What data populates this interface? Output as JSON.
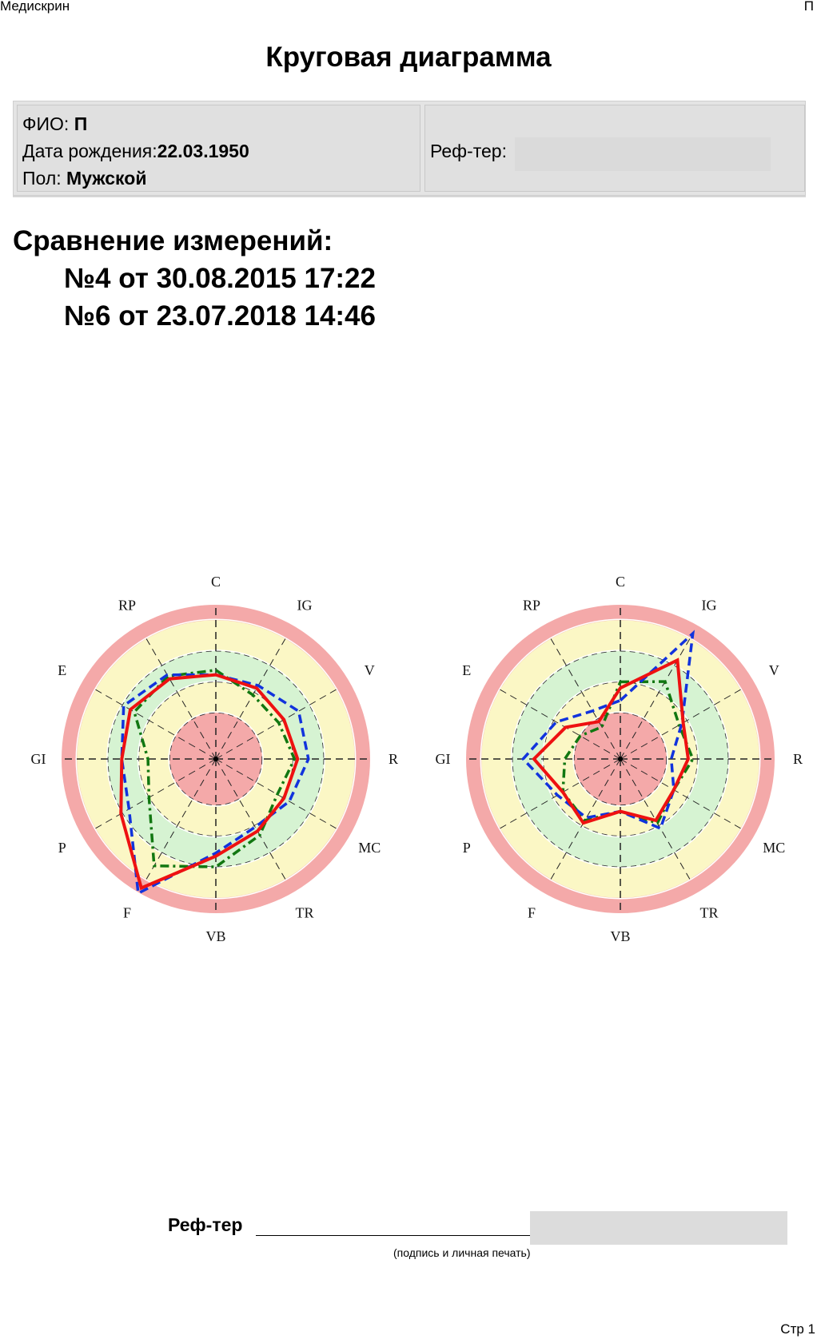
{
  "header": {
    "app": "Медискрин",
    "user_initial": "П"
  },
  "title": "Круговая диаграмма",
  "patient": {
    "fio_label": "ФИО:",
    "fio": "П",
    "dob_label": "Дата рождения:",
    "dob": "22.03.1950",
    "sex_label": "Пол:",
    "sex": "Мужской",
    "ref_label": "Реф-тер:"
  },
  "comparison": {
    "heading": "Сравнение измерений:",
    "line1": "№4 от 30.08.2015 17:22",
    "line2": "№6 от 23.07.2018 14:46"
  },
  "chart_data": [
    {
      "type": "radar",
      "axes": [
        "C",
        "IG",
        "V",
        "R",
        "MC",
        "TR",
        "VB",
        "F",
        "P",
        "GI",
        "E",
        "RP"
      ],
      "rlim": [
        0,
        5
      ],
      "zones": [
        {
          "from": 0,
          "to": 1.5,
          "color": "#f4a9a9"
        },
        {
          "from": 1.5,
          "to": 2.5,
          "color": "#fbf7c5"
        },
        {
          "from": 2.5,
          "to": 3.5,
          "color": "#d6f3d2"
        },
        {
          "from": 3.5,
          "to": 4.5,
          "color": "#fbf7c5"
        },
        {
          "from": 4.5,
          "to": 5,
          "color": "#f4a9a9"
        }
      ],
      "series": [
        {
          "color": "#ee1111",
          "style": "solid",
          "values": [
            2.73,
            2.65,
            2.55,
            2.65,
            2.55,
            2.7,
            3.15,
            4.83,
            3.55,
            3.05,
            3.2,
            3.0
          ]
        },
        {
          "color": "#1133dd",
          "style": "dashed",
          "values": [
            2.73,
            2.75,
            3.1,
            3.0,
            2.75,
            2.55,
            3.05,
            5.03,
            3.25,
            3.05,
            3.45,
            3.15
          ]
        },
        {
          "color": "#117711",
          "style": "dashdot",
          "values": [
            2.88,
            2.4,
            2.35,
            2.55,
            2.3,
            2.85,
            3.5,
            4.0,
            2.5,
            2.2,
            3.05,
            3.1
          ]
        }
      ]
    },
    {
      "type": "radar",
      "axes": [
        "C",
        "IG",
        "V",
        "R",
        "MC",
        "TR",
        "VB",
        "F",
        "P",
        "GI",
        "E",
        "RP"
      ],
      "rlim": [
        0,
        5
      ],
      "zones": [
        {
          "from": 0,
          "to": 1.5,
          "color": "#f4a9a9"
        },
        {
          "from": 1.5,
          "to": 2.5,
          "color": "#fbf7c5"
        },
        {
          "from": 2.5,
          "to": 3.5,
          "color": "#d6f3d2"
        },
        {
          "from": 3.5,
          "to": 4.5,
          "color": "#fbf7c5"
        },
        {
          "from": 4.5,
          "to": 5,
          "color": "#f4a9a9"
        }
      ],
      "series": [
        {
          "color": "#ee1111",
          "style": "solid",
          "values": [
            2.3,
            3.7,
            2.35,
            2.2,
            2.0,
            2.3,
            1.7,
            2.4,
            2.15,
            2.8,
            2.05,
            1.4
          ]
        },
        {
          "color": "#1133dd",
          "style": "dashed",
          "values": [
            1.9,
            4.7,
            2.3,
            1.65,
            2.0,
            2.6,
            1.7,
            2.2,
            2.35,
            3.15,
            2.4,
            1.8
          ]
        },
        {
          "color": "#117711",
          "style": "dashdot",
          "values": [
            2.5,
            2.9,
            2.2,
            2.35,
            2.0,
            2.4,
            1.7,
            2.3,
            2.15,
            1.8,
            1.5,
            1.2
          ]
        }
      ]
    }
  ],
  "signature": {
    "label": "Реф-тер",
    "note": "(подпись и личная печать)"
  },
  "footer": {
    "page": "Стр 1"
  }
}
